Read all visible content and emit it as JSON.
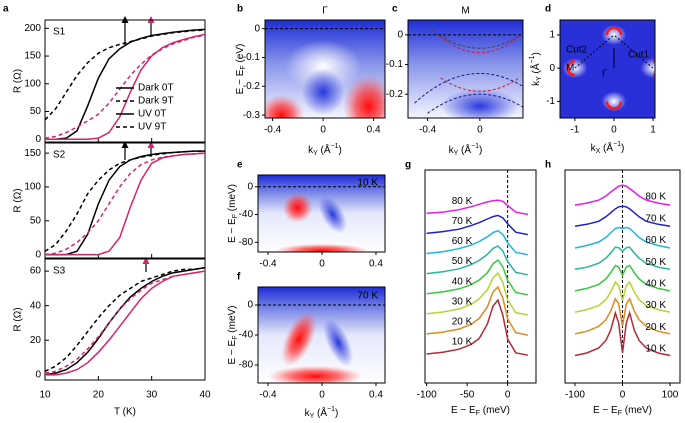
{
  "chart_data": [
    {
      "type": "line",
      "panel": "a",
      "xlabel": "T (K)",
      "xlim": [
        10,
        40
      ],
      "xticks": [
        10,
        20,
        30,
        40
      ],
      "x": [
        10,
        12,
        14,
        16,
        18,
        20,
        22,
        24,
        26,
        28,
        30,
        32,
        34,
        36,
        38,
        40
      ],
      "series": [
        {
          "name": "Dark 0T",
          "color": "#000000",
          "dash": false
        },
        {
          "name": "Dark 9T",
          "color": "#000000",
          "dash": true
        },
        {
          "name": "UV 0T",
          "color": "#d4246e",
          "dash": false
        },
        {
          "name": "UV 9T",
          "color": "#d4246e",
          "dash": true
        }
      ],
      "subplots": [
        {
          "label": "S1",
          "ylabel": "R (Ω)",
          "ylim": [
            -5,
            215
          ],
          "yticks": [
            0,
            50,
            100,
            150,
            200
          ],
          "values": [
            [
              0,
              0,
              2,
              15,
              60,
              110,
              145,
              163,
              175,
              182,
              187,
              190,
              193,
              195,
              197,
              198
            ],
            [
              35,
              55,
              85,
              115,
              138,
              155,
              165,
              171,
              176,
              181,
              186,
              189,
              192,
              194,
              196,
              197
            ],
            [
              0,
              0,
              0,
              0,
              0,
              2,
              12,
              40,
              85,
              125,
              150,
              165,
              174,
              180,
              185,
              189
            ],
            [
              2,
              5,
              12,
              22,
              33,
              45,
              65,
              90,
              115,
              135,
              152,
              163,
              172,
              178,
              184,
              188
            ]
          ]
        },
        {
          "label": "S2",
          "ylabel": "R (Ω)",
          "ylim": [
            -5,
            165
          ],
          "yticks": [
            0,
            50,
            100,
            150
          ],
          "values": [
            [
              0,
              0,
              0,
              5,
              30,
              75,
              110,
              130,
              140,
              145,
              148,
              150,
              151,
              152,
              153,
              153
            ],
            [
              5,
              15,
              35,
              60,
              90,
              110,
              125,
              135,
              140,
              144,
              147,
              149,
              151,
              152,
              153,
              153
            ],
            [
              0,
              0,
              0,
              0,
              0,
              0,
              5,
              25,
              70,
              110,
              135,
              143,
              146,
              148,
              149,
              150
            ],
            [
              0,
              2,
              8,
              18,
              32,
              50,
              75,
              100,
              120,
              133,
              140,
              144,
              146,
              148,
              149,
              150
            ]
          ]
        },
        {
          "label": "S3",
          "ylabel": "R (Ω)",
          "ylim": [
            -3,
            67
          ],
          "yticks": [
            0,
            20,
            40,
            60
          ],
          "values": [
            [
              0,
              1,
              3,
              7,
              13,
              21,
              30,
              38,
              45,
              50,
              54,
              57,
              59,
              60,
              61,
              62
            ],
            [
              2,
              5,
              10,
              17,
              25,
              33,
              40,
              46,
              50,
              54,
              56,
              58,
              60,
              61,
              61,
              62
            ],
            [
              0,
              0,
              1,
              3,
              7,
              13,
              20,
              28,
              36,
              44,
              50,
              54,
              57,
              58,
              59,
              60
            ],
            [
              1,
              2,
              5,
              9,
              15,
              22,
              30,
              38,
              44,
              49,
              53,
              55,
              57,
              58,
              59,
              60
            ]
          ]
        }
      ]
    },
    {
      "type": "image",
      "panel": "b",
      "title": "Γ",
      "xlim": [
        -0.46,
        0.49
      ],
      "ylim": [
        -0.31,
        0.03
      ],
      "xticks": [
        -0.4,
        0,
        0.4
      ],
      "yticks": [
        0,
        -0.1,
        -0.2,
        -0.3
      ],
      "ref_line": 0,
      "xlabel": [
        {
          "text": "k"
        },
        {
          "text": "Y",
          "shift": "sub"
        },
        {
          "text": " (Å"
        },
        {
          "text": "−1",
          "shift": "super"
        },
        {
          "text": ")"
        }
      ],
      "ylabel": [
        {
          "text": "E − E"
        },
        {
          "text": "F",
          "shift": "sub"
        },
        {
          "text": " (eV)"
        }
      ]
    },
    {
      "type": "image",
      "panel": "c",
      "title": "M",
      "xlim": [
        -0.55,
        0.33
      ],
      "ylim": [
        -0.28,
        0.05
      ],
      "xticks": [
        -0.4,
        0
      ],
      "yticks": [
        0,
        -0.1,
        -0.2
      ],
      "ref_line": 0,
      "xlabel": [
        {
          "text": "k"
        },
        {
          "text": "Y",
          "shift": "sub"
        },
        {
          "text": " (Å"
        },
        {
          "text": "−1",
          "shift": "super"
        },
        {
          "text": ")"
        }
      ]
    },
    {
      "type": "image",
      "panel": "d",
      "xlim": [
        -1.38,
        1.05
      ],
      "ylim": [
        -1.5,
        1.45
      ],
      "xticks": [
        -1,
        0,
        1
      ],
      "yticks": [
        1,
        0,
        -1
      ],
      "annotations": [
        "Cut2",
        "Cut1",
        "M",
        "Γ"
      ],
      "xlabel": [
        {
          "text": "k"
        },
        {
          "text": "X",
          "shift": "sub"
        },
        {
          "text": " (Å"
        },
        {
          "text": "−1",
          "shift": "super"
        },
        {
          "text": ")"
        }
      ],
      "ylabel": [
        {
          "text": "k"
        },
        {
          "text": "Y",
          "shift": "sub"
        },
        {
          "text": " (Å"
        },
        {
          "text": "−1",
          "shift": "super"
        },
        {
          "text": ")"
        }
      ]
    },
    {
      "type": "image",
      "panel": "e",
      "xlim": [
        -0.474,
        0.467
      ],
      "ylim": [
        -94,
        17
      ],
      "xticks": [
        -0.4,
        0,
        0.4
      ],
      "yticks": [
        0,
        -40,
        -80
      ],
      "ref_line": 0,
      "annotations": [
        "10 K"
      ],
      "ylabel": [
        {
          "text": "E − E"
        },
        {
          "text": "F",
          "shift": "sub"
        },
        {
          "text": " (meV)"
        }
      ]
    },
    {
      "type": "image",
      "panel": "f",
      "xlim": [
        -0.474,
        0.467
      ],
      "ylim": [
        -104,
        24
      ],
      "xticks": [
        -0.4,
        0,
        0.4
      ],
      "yticks": [
        0,
        -40,
        -80
      ],
      "ref_line": 0,
      "annotations": [
        "70 K"
      ],
      "xlabel": [
        {
          "text": "k"
        },
        {
          "text": "Y",
          "shift": "sub"
        },
        {
          "text": " (Å"
        },
        {
          "text": "−1",
          "shift": "super"
        },
        {
          "text": ")"
        }
      ],
      "ylabel": [
        {
          "text": "E − E"
        },
        {
          "text": "F",
          "shift": "sub"
        },
        {
          "text": " (meV)"
        }
      ]
    },
    {
      "type": "waterfall",
      "panel": "g",
      "xlim": [
        -102,
        35
      ],
      "xticks": [
        -100,
        -50,
        0
      ],
      "vline": 0,
      "xlabel": [
        {
          "text": "E − E"
        },
        {
          "text": "F",
          "shift": "sub"
        },
        {
          "text": " (meV)"
        }
      ],
      "x": [
        -100,
        -80,
        -60,
        -45,
        -35,
        -25,
        -18,
        -12,
        -6,
        0,
        10,
        25
      ],
      "series": [
        {
          "name": "10 K",
          "color": "#b22a3a",
          "values": [
            0.1,
            0.13,
            0.18,
            0.26,
            0.36,
            0.6,
            0.9,
            1.0,
            0.75,
            0.35,
            0.12,
            0.08
          ]
        },
        {
          "name": "20 K",
          "color": "#e08a1e",
          "values": [
            0.1,
            0.13,
            0.18,
            0.26,
            0.36,
            0.55,
            0.8,
            0.88,
            0.7,
            0.35,
            0.12,
            0.08
          ]
        },
        {
          "name": "30 K",
          "color": "#b5d334",
          "values": [
            0.1,
            0.13,
            0.18,
            0.26,
            0.35,
            0.5,
            0.7,
            0.78,
            0.62,
            0.33,
            0.12,
            0.08
          ]
        },
        {
          "name": "40 K",
          "color": "#3cc93c",
          "values": [
            0.1,
            0.13,
            0.18,
            0.25,
            0.33,
            0.45,
            0.6,
            0.66,
            0.55,
            0.32,
            0.12,
            0.08
          ]
        },
        {
          "name": "50 K",
          "color": "#29b59a",
          "values": [
            0.1,
            0.13,
            0.18,
            0.25,
            0.32,
            0.42,
            0.52,
            0.56,
            0.48,
            0.3,
            0.12,
            0.08
          ]
        },
        {
          "name": "60 K",
          "color": "#1eb4e6",
          "values": [
            0.1,
            0.13,
            0.18,
            0.24,
            0.3,
            0.38,
            0.45,
            0.48,
            0.42,
            0.28,
            0.12,
            0.08
          ]
        },
        {
          "name": "70 K",
          "color": "#2020c8",
          "values": [
            0.1,
            0.13,
            0.17,
            0.23,
            0.28,
            0.34,
            0.38,
            0.4,
            0.36,
            0.26,
            0.12,
            0.08
          ]
        },
        {
          "name": "80 K",
          "color": "#e81ce8",
          "values": [
            0.1,
            0.12,
            0.16,
            0.21,
            0.25,
            0.29,
            0.31,
            0.32,
            0.3,
            0.23,
            0.12,
            0.08
          ]
        }
      ]
    },
    {
      "type": "waterfall",
      "panel": "h",
      "xlim": [
        -121,
        121
      ],
      "xticks": [
        -100,
        0,
        100
      ],
      "vline": 0,
      "xlabel": [
        {
          "text": "E − E"
        },
        {
          "text": "F",
          "shift": "sub"
        },
        {
          "text": " (meV)"
        }
      ],
      "x": [
        -100,
        -75,
        -50,
        -35,
        -25,
        -15,
        -8,
        0,
        8,
        15,
        25,
        35,
        50,
        75,
        100
      ],
      "series": [
        {
          "name": "10 K",
          "color": "#b22a3a",
          "values": [
            0.15,
            0.2,
            0.3,
            0.45,
            0.65,
            1.0,
            0.8,
            0.2,
            0.8,
            1.0,
            0.65,
            0.45,
            0.3,
            0.2,
            0.15
          ]
        },
        {
          "name": "20 K",
          "color": "#e08a1e",
          "values": [
            0.15,
            0.2,
            0.3,
            0.43,
            0.6,
            0.85,
            0.75,
            0.3,
            0.75,
            0.85,
            0.6,
            0.43,
            0.3,
            0.2,
            0.15
          ]
        },
        {
          "name": "30 K",
          "color": "#b5d334",
          "values": [
            0.15,
            0.2,
            0.28,
            0.4,
            0.55,
            0.75,
            0.68,
            0.38,
            0.68,
            0.75,
            0.55,
            0.4,
            0.28,
            0.2,
            0.15
          ]
        },
        {
          "name": "40 K",
          "color": "#3cc93c",
          "values": [
            0.14,
            0.19,
            0.27,
            0.38,
            0.5,
            0.65,
            0.62,
            0.45,
            0.62,
            0.65,
            0.5,
            0.38,
            0.27,
            0.19,
            0.14
          ]
        },
        {
          "name": "50 K",
          "color": "#29b59a",
          "values": [
            0.14,
            0.18,
            0.26,
            0.36,
            0.46,
            0.58,
            0.57,
            0.5,
            0.57,
            0.58,
            0.46,
            0.36,
            0.26,
            0.18,
            0.14
          ]
        },
        {
          "name": "60 K",
          "color": "#1eb4e6",
          "values": [
            0.13,
            0.18,
            0.25,
            0.34,
            0.43,
            0.52,
            0.54,
            0.52,
            0.54,
            0.52,
            0.43,
            0.34,
            0.25,
            0.18,
            0.13
          ]
        },
        {
          "name": "70 K",
          "color": "#2020c8",
          "values": [
            0.13,
            0.17,
            0.23,
            0.32,
            0.4,
            0.48,
            0.52,
            0.53,
            0.52,
            0.48,
            0.4,
            0.32,
            0.23,
            0.17,
            0.13
          ]
        },
        {
          "name": "80 K",
          "color": "#e81ce8",
          "values": [
            0.12,
            0.16,
            0.22,
            0.3,
            0.38,
            0.45,
            0.5,
            0.52,
            0.5,
            0.45,
            0.38,
            0.3,
            0.22,
            0.16,
            0.12
          ]
        }
      ]
    }
  ]
}
